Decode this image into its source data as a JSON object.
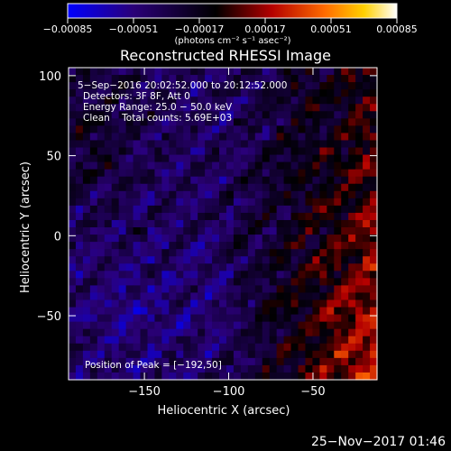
{
  "colors": {
    "background": "#000000",
    "foreground": "#ffffff",
    "colormap": [
      "#0000ff",
      "#2a0078",
      "#000000",
      "#b40000",
      "#ff6a00",
      "#ffd000",
      "#ffffff"
    ]
  },
  "chart_data": {
    "type": "heatmap",
    "title": "Reconstructed RHESSI Image",
    "xlabel": "Heliocentric X (arcsec)",
    "ylabel": "Heliocentric Y (arcsec)",
    "xlim": [
      -195,
      -12
    ],
    "ylim": [
      -90,
      105
    ],
    "x_ticks": [
      -150,
      -100,
      -50
    ],
    "y_ticks": [
      100,
      50,
      0,
      -50
    ],
    "x_tick_labels": [
      "−150",
      "−100",
      "−50"
    ],
    "y_tick_labels": [
      "100",
      "50",
      "0",
      "−50"
    ],
    "colorbar": {
      "range": [
        -0.00085,
        0.00085
      ],
      "ticks": [
        -0.00085,
        -0.00051,
        -0.00017,
        0.00017,
        0.00051,
        0.00085
      ],
      "tick_labels": [
        "−0.00085",
        "−0.00051",
        "−0.00017",
        "0.00017",
        "0.00051",
        "0.00085"
      ],
      "unit_label": "(photons cm⁻² s⁻¹ asec⁻²)"
    },
    "annotations": {
      "time_range": "5−Sep−2016 20:02:52.000 to 20:12:52.000",
      "detectors": "Detectors: 3F 8F, Att 0",
      "energy_range": "Energy Range: 25.0 − 50.0 keV",
      "clean_counts": "Clean    Total counts: 5.69E+03",
      "peak": "Position of Peak = [−192,50]"
    },
    "peak_position": [
      -192,
      50
    ],
    "grid": false
  },
  "footer": {
    "timestamp": "25−Nov−2017 01:46"
  }
}
